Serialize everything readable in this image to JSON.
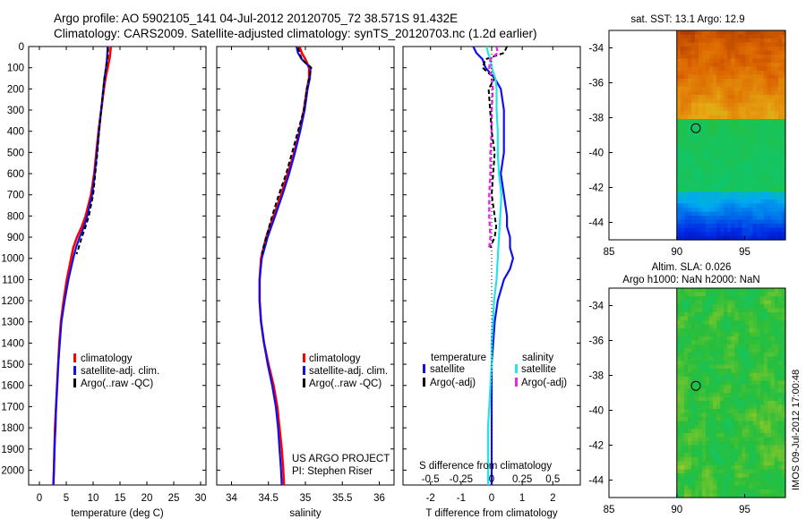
{
  "header": {
    "line1": "Argo profile: AO 5902105_141 04-Jul-2012 20120705_72 38.571S 91.432E",
    "line2": "Climatology: CARS2009. Satellite-adjusted climatology: synTS_20120703.nc (1.2d earlier)"
  },
  "colors": {
    "climatology": "#ff0000",
    "satellite": "#1010ee",
    "argo": "#000000",
    "sat_salinity": "#22e6e6",
    "argo_salinity": "#ee22ee"
  },
  "depth_ticks": [
    "0",
    "100",
    "200",
    "300",
    "400",
    "500",
    "600",
    "700",
    "800",
    "900",
    "1000",
    "1100",
    "1200",
    "1300",
    "1400",
    "1500",
    "1600",
    "1700",
    "1800",
    "1900",
    "2000"
  ],
  "chart_data": [
    {
      "type": "line",
      "name": "temperature-profile",
      "xlabel": "temperature (deg C)",
      "xlim": [
        -2,
        31
      ],
      "ylim": [
        2070,
        0
      ],
      "xticks": [
        "0",
        "5",
        "10",
        "15",
        "20",
        "25",
        "30"
      ],
      "legend": [
        "climatology",
        "satellite-adj. clim.",
        "Argo(..raw -QC)"
      ],
      "series": [
        {
          "name": "climatology",
          "depth": [
            0,
            50,
            100,
            150,
            200,
            300,
            400,
            500,
            600,
            700,
            800,
            850,
            900,
            950,
            1000,
            1100,
            1200,
            1300,
            1400,
            1500,
            1600,
            1700,
            1800,
            1900,
            2000,
            2070
          ],
          "values": [
            13.3,
            13.1,
            12.7,
            12.3,
            12.0,
            11.5,
            11.0,
            10.6,
            10.2,
            9.6,
            8.6,
            7.9,
            7.0,
            6.3,
            5.9,
            5.1,
            4.5,
            4.0,
            3.7,
            3.5,
            3.3,
            3.1,
            2.9,
            2.8,
            2.7,
            2.6
          ]
        },
        {
          "name": "satellite-adj. clim.",
          "depth": [
            0,
            50,
            100,
            150,
            200,
            300,
            400,
            500,
            600,
            700,
            800,
            850,
            900,
            950,
            1000,
            1100,
            1200,
            1300,
            1400,
            1500,
            1600,
            1700,
            1800,
            1900,
            2000,
            2070
          ],
          "values": [
            12.7,
            12.6,
            12.4,
            12.1,
            11.9,
            11.5,
            11.1,
            10.7,
            10.3,
            9.8,
            8.9,
            8.3,
            7.5,
            6.8,
            6.3,
            5.4,
            4.7,
            4.1,
            3.8,
            3.5,
            3.3,
            3.1,
            3.0,
            2.8,
            2.7,
            2.6
          ]
        },
        {
          "name": "Argo(..raw -QC)",
          "depth": [
            5,
            50,
            100,
            150,
            200,
            300,
            400,
            500,
            600,
            700,
            800,
            850,
            900,
            950,
            980
          ],
          "values": [
            12.8,
            12.7,
            12.4,
            12.1,
            11.9,
            11.5,
            11.1,
            10.8,
            10.4,
            10.0,
            9.2,
            8.6,
            7.9,
            7.3,
            6.9
          ]
        }
      ]
    },
    {
      "type": "line",
      "name": "salinity-profile",
      "xlabel": "salinity",
      "xlim": [
        33.8,
        36.2
      ],
      "ylim": [
        2070,
        0
      ],
      "xticks": [
        "34",
        "34.5",
        "35",
        "35.5",
        "36"
      ],
      "legend": [
        "climatology",
        "satellite-adj. clim.",
        "Argo(..raw -QC)"
      ],
      "annotation": [
        "US ARGO PROJECT",
        "PI: Stephen Riser"
      ],
      "series": [
        {
          "name": "climatology",
          "depth": [
            0,
            30,
            60,
            100,
            150,
            200,
            300,
            400,
            500,
            600,
            700,
            800,
            900,
            1000,
            1100,
            1200,
            1300,
            1400,
            1500,
            1600,
            1700,
            1800,
            1900,
            2000,
            2070
          ],
          "values": [
            34.92,
            34.95,
            35.0,
            35.05,
            35.05,
            35.02,
            34.98,
            34.92,
            34.85,
            34.76,
            34.67,
            34.57,
            34.47,
            34.4,
            34.38,
            34.38,
            34.4,
            34.44,
            34.5,
            34.57,
            34.62,
            34.65,
            34.68,
            34.7,
            34.71
          ]
        },
        {
          "name": "satellite-adj. clim.",
          "depth": [
            0,
            30,
            60,
            100,
            150,
            200,
            300,
            400,
            500,
            600,
            700,
            800,
            900,
            1000,
            1100,
            1200,
            1300,
            1400,
            1500,
            1600,
            1700,
            1800,
            1900,
            2000,
            2070
          ],
          "values": [
            34.88,
            34.9,
            34.95,
            35.07,
            35.06,
            35.03,
            34.99,
            34.93,
            34.86,
            34.78,
            34.69,
            34.59,
            34.49,
            34.41,
            34.38,
            34.38,
            34.4,
            34.44,
            34.49,
            34.55,
            34.6,
            34.63,
            34.65,
            34.67,
            34.68
          ]
        },
        {
          "name": "Argo(..raw -QC)",
          "depth": [
            5,
            30,
            60,
            100,
            150,
            200,
            300,
            400,
            500,
            600,
            700,
            800,
            900,
            950,
            980
          ],
          "values": [
            34.9,
            34.92,
            34.95,
            35.08,
            35.05,
            35.02,
            34.98,
            34.9,
            34.82,
            34.74,
            34.64,
            34.55,
            34.47,
            34.43,
            34.41
          ]
        }
      ]
    },
    {
      "type": "line",
      "name": "difference-profile",
      "xlabel": "T difference from climatology",
      "xlabel_top": "S difference from climatology",
      "xlim": [
        -2.9,
        2.9
      ],
      "ylim": [
        2070,
        0
      ],
      "xticks": [
        "-2",
        "-1",
        "0",
        "1",
        "2"
      ],
      "xticks_top": [
        "-0.5",
        "-0.25",
        "0",
        "0.25",
        "0.5"
      ],
      "legend_groups": [
        {
          "title": "temperature",
          "entries": [
            "satellite",
            "Argo(-adj)"
          ]
        },
        {
          "title": "salinity",
          "entries": [
            "satellite",
            "Argo(-adj)"
          ]
        }
      ],
      "series": [
        {
          "name": "temperature satellite",
          "depth": [
            0,
            30,
            60,
            100,
            150,
            200,
            300,
            400,
            500,
            600,
            700,
            800,
            850,
            900,
            950,
            1000,
            1050,
            1100,
            1200,
            1300,
            1400,
            1500,
            1600,
            1700,
            1800,
            1900,
            2000,
            2070
          ],
          "values": [
            -0.6,
            -0.5,
            -0.3,
            -0.2,
            0.1,
            0.3,
            0.4,
            0.4,
            0.4,
            0.3,
            0.4,
            0.5,
            0.5,
            0.6,
            0.6,
            0.7,
            0.6,
            0.4,
            0.2,
            0.1,
            0.05,
            0.0,
            0.0,
            0.0,
            0.0,
            0.0,
            0.0,
            0.0
          ]
        },
        {
          "name": "temperature Argo(-adj)",
          "depth": [
            0,
            30,
            60,
            100,
            150,
            200,
            300,
            400,
            500,
            600,
            700,
            800,
            850,
            900,
            950
          ],
          "values": [
            0.5,
            0.4,
            -0.2,
            -0.3,
            0.1,
            -0.1,
            -0.05,
            0.0,
            0.1,
            0.05,
            0.0,
            0.1,
            0.15,
            0.1,
            -0.05
          ]
        },
        {
          "name": "salinity satellite",
          "depth": [
            0,
            30,
            60,
            100,
            150,
            200,
            300,
            400,
            500,
            600,
            700,
            800,
            900,
            1000,
            1100,
            1200,
            1300,
            1400,
            1500,
            1600,
            1700,
            1800,
            1900,
            2000,
            2070
          ],
          "values": [
            -0.04,
            -0.03,
            -0.01,
            0.0,
            0.03,
            0.04,
            0.04,
            0.05,
            0.05,
            0.06,
            0.08,
            0.07,
            0.06,
            0.05,
            0.04,
            0.02,
            0.01,
            0.0,
            0.0,
            -0.01,
            -0.02,
            -0.03,
            -0.03,
            -0.03,
            -0.03
          ]
        },
        {
          "name": "salinity Argo(-adj)",
          "depth": [
            0,
            30,
            60,
            100,
            150,
            200,
            300,
            400,
            500,
            600,
            700,
            800,
            900,
            950
          ],
          "values": [
            0.04,
            0.05,
            -0.01,
            -0.02,
            0.0,
            0.01,
            0.0,
            0.0,
            -0.01,
            -0.01,
            -0.02,
            -0.02,
            -0.01,
            -0.02
          ]
        }
      ]
    },
    {
      "type": "heatmap",
      "name": "sst-map",
      "title": "sat. SST: 13.1  Argo: 12.9",
      "xlim": [
        85,
        98
      ],
      "ylim": [
        -45,
        -33
      ],
      "xticks": [
        "85",
        "90",
        "95"
      ],
      "yticks": [
        "-34",
        "-36",
        "-38",
        "-40",
        "-42",
        "-44"
      ],
      "marker": {
        "lon": 91.4,
        "lat": -38.6
      }
    },
    {
      "type": "heatmap",
      "name": "sla-map",
      "title": [
        "Altim. SLA: 0.026",
        "Argo h1000: NaN h2000: NaN"
      ],
      "xlim": [
        85,
        98
      ],
      "ylim": [
        -45,
        -33
      ],
      "xticks": [
        "85",
        "90",
        "95"
      ],
      "yticks": [
        "-34",
        "-36",
        "-38",
        "-40",
        "-42",
        "-44"
      ],
      "marker": {
        "lon": 91.4,
        "lat": -38.6
      }
    }
  ],
  "side_label": "IMOS 09-Jul-2012 17:00:48"
}
